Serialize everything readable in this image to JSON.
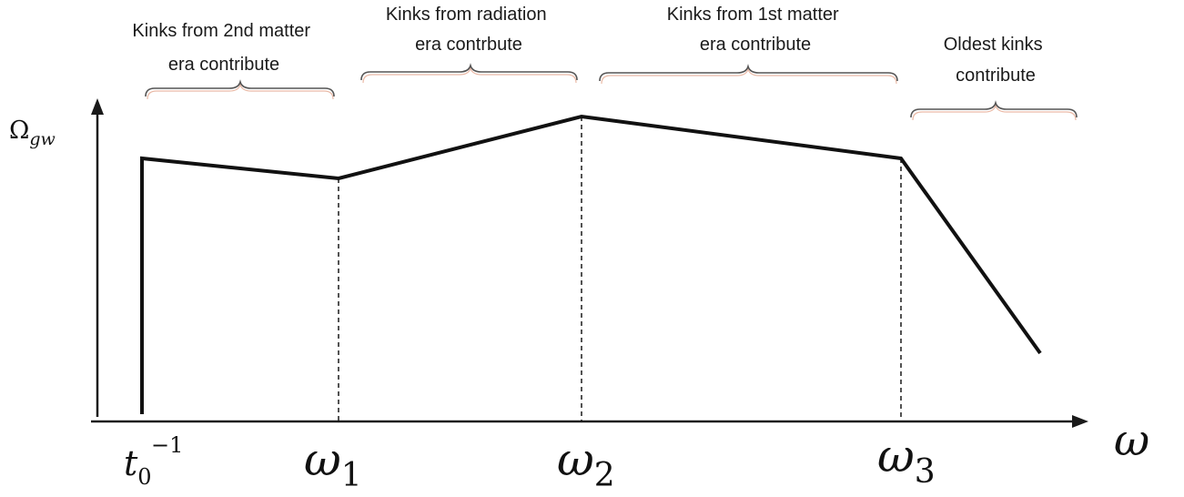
{
  "y_axis_label": {
    "symbol": "Ω",
    "subscript": "gw"
  },
  "x_axis_label": "ω",
  "x_ticks": {
    "t0": {
      "base": "t",
      "sub": "0",
      "sup": "−1"
    },
    "w1": {
      "base": "ω",
      "sub": "1"
    },
    "w2": {
      "base": "ω",
      "sub": "2"
    },
    "w3": {
      "base": "ω",
      "sub": "3"
    }
  },
  "regions": [
    {
      "lines": [
        "Kinks from 2nd matter",
        "era contribute"
      ]
    },
    {
      "lines": [
        "Kinks from radiation",
        "era contrbute"
      ]
    },
    {
      "lines": [
        "Kinks from 1st matter",
        "era contribute"
      ]
    },
    {
      "lines": [
        "Oldest kinks",
        "contribute"
      ]
    }
  ],
  "colors": {
    "line": "#111111",
    "brace": "#555555",
    "brace_shadow": "#e9b9a6"
  }
}
